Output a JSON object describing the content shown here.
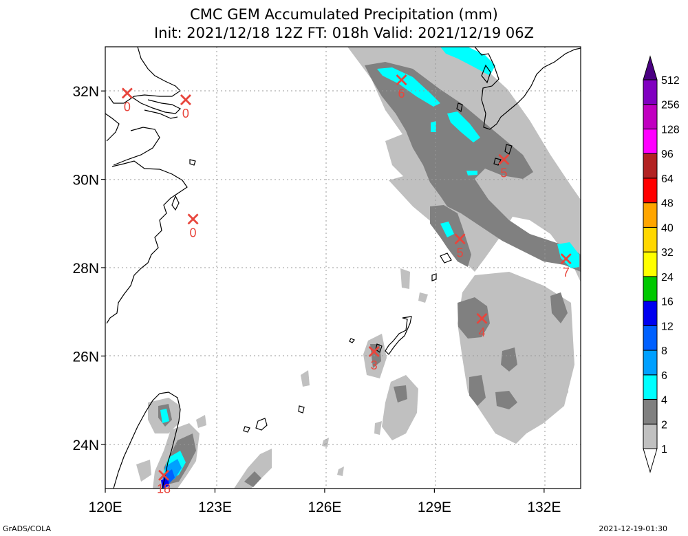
{
  "chart_data": {
    "type": "heatmap",
    "title": "CMC GEM Accumulated Precipitation (mm)",
    "subtitle": "Init: 2021/12/18 12Z  FT: 018h  Valid: 2021/12/19 06Z",
    "x_ticks": [
      "120E",
      "123E",
      "126E",
      "129E",
      "132E"
    ],
    "x_tick_values": [
      120,
      123,
      126,
      129,
      132
    ],
    "y_ticks": [
      "24N",
      "26N",
      "28N",
      "30N",
      "32N"
    ],
    "y_tick_values": [
      24,
      26,
      28,
      30,
      32
    ],
    "xlim": [
      120,
      133
    ],
    "ylim": [
      23,
      33
    ],
    "grid": true,
    "legend_position": "right",
    "colorbar": {
      "levels": [
        "1",
        "2",
        "4",
        "6",
        "8",
        "12",
        "16",
        "24",
        "32",
        "40",
        "48",
        "64",
        "96",
        "128",
        "256",
        "512"
      ],
      "colors": [
        "#ffffff",
        "#c0c0c0",
        "#808080",
        "#00ffff",
        "#00a0ff",
        "#0060ff",
        "#0000f0",
        "#00c800",
        "#ffff00",
        "#ffd700",
        "#ffa500",
        "#ff0000",
        "#b22222",
        "#ff00ff",
        "#c000c0",
        "#8000c0",
        "#4b0082"
      ]
    },
    "station_values": [
      {
        "lon": 120.6,
        "lat": 31.95,
        "value": "0"
      },
      {
        "lon": 122.2,
        "lat": 31.8,
        "value": "0"
      },
      {
        "lon": 122.4,
        "lat": 29.1,
        "value": "0"
      },
      {
        "lon": 128.1,
        "lat": 32.25,
        "value": "6"
      },
      {
        "lon": 130.9,
        "lat": 30.45,
        "value": "5"
      },
      {
        "lon": 129.7,
        "lat": 28.65,
        "value": "5"
      },
      {
        "lon": 132.6,
        "lat": 28.2,
        "value": "7"
      },
      {
        "lon": 130.3,
        "lat": 26.85,
        "value": "4"
      },
      {
        "lon": 127.35,
        "lat": 26.1,
        "value": "3"
      },
      {
        "lon": 121.6,
        "lat": 23.3,
        "value": "18"
      }
    ]
  },
  "footer": {
    "left": "GrADS/COLA",
    "right": "2021-12-19-01:30"
  }
}
